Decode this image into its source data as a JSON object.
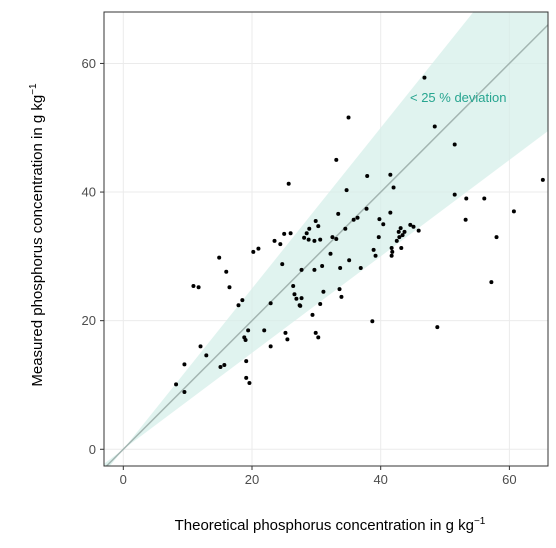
{
  "chart_data": {
    "type": "scatter",
    "xlabel": {
      "text": "Theoretical phosphorus concentration in g kg",
      "superscript": "−1"
    },
    "ylabel": {
      "text": "Measured phosphorus concentration in g kg",
      "superscript": "−1"
    },
    "annotation": "< 25 % deviation",
    "band_deviation_percent": 25,
    "band_color": "#d5efe9",
    "identity_line_color": "#a3b5b1",
    "annotation_color": "#27a590",
    "color": "#000000",
    "grid": true,
    "xlim": [
      -3,
      66
    ],
    "ylim": [
      -2.6,
      68
    ],
    "xticks": [
      0,
      20,
      40,
      60
    ],
    "yticks": [
      0,
      20,
      40,
      60
    ],
    "x": [
      8.2,
      9.5,
      9.5,
      10.9,
      11.7,
      12,
      12.9,
      14.9,
      15.1,
      15.7,
      16,
      16.5,
      17.9,
      18.5,
      19,
      18.8,
      19.1,
      19.1,
      19.6,
      19.4,
      20.2,
      21,
      21.9,
      22.9,
      22.9,
      23.5,
      24.4,
      24.7,
      25,
      25.2,
      25.5,
      25.7,
      26,
      26.4,
      26.6,
      26.9,
      27.4,
      27.5,
      27.7,
      27.7,
      28.1,
      28.5,
      28.9,
      28.8,
      29.4,
      29.7,
      29.7,
      29.9,
      29.9,
      30.3,
      30.3,
      30.6,
      30.9,
      30.6,
      31.1,
      32.2,
      32.5,
      33.1,
      33.1,
      33.4,
      33.6,
      33.7,
      33.9,
      34.5,
      34.7,
      35,
      35.1,
      35.8,
      36.4,
      36.9,
      37.8,
      37.9,
      38.7,
      38.9,
      39.2,
      39.7,
      39.8,
      40.4,
      41.5,
      41.5,
      41.7,
      41.8,
      41.7,
      42,
      42.5,
      42.8,
      43.1,
      42.9,
      43.2,
      43.4,
      43.7,
      44.6,
      45.1,
      45.9,
      46.8,
      48.4,
      48.8,
      51.5,
      51.5,
      53.3,
      53.2,
      56.1,
      57.2,
      58,
      60.7,
      65.2
    ],
    "values": [
      10.1,
      13.2,
      8.9,
      25.4,
      25.2,
      16,
      14.6,
      29.8,
      12.8,
      13.1,
      27.6,
      25.2,
      22.4,
      23.2,
      17,
      17.4,
      13.7,
      11.1,
      10.3,
      18.5,
      30.7,
      31.2,
      18.5,
      22.7,
      16,
      32.4,
      31.9,
      28.8,
      33.5,
      18.1,
      17.1,
      41.3,
      33.6,
      25.4,
      24.1,
      23.4,
      22.4,
      22.3,
      23.5,
      27.9,
      32.9,
      33.6,
      34.3,
      32.6,
      20.9,
      27.9,
      32.4,
      35.5,
      18.1,
      17.4,
      34.7,
      22.6,
      28.5,
      32.6,
      24.5,
      30.4,
      33,
      32.7,
      45,
      36.6,
      24.9,
      28.2,
      23.7,
      34.3,
      40.3,
      51.6,
      29.4,
      35.7,
      36,
      28.2,
      37.4,
      42.5,
      19.9,
      31,
      30.1,
      33,
      35.8,
      35,
      36.8,
      42.7,
      31.3,
      30.7,
      30.1,
      40.7,
      32.4,
      33.8,
      34.4,
      33,
      31.3,
      33.3,
      33.8,
      34.9,
      34.6,
      34,
      57.8,
      50.2,
      19,
      47.4,
      39.6,
      39,
      35.7,
      39,
      26,
      33,
      37,
      41.9
    ]
  }
}
